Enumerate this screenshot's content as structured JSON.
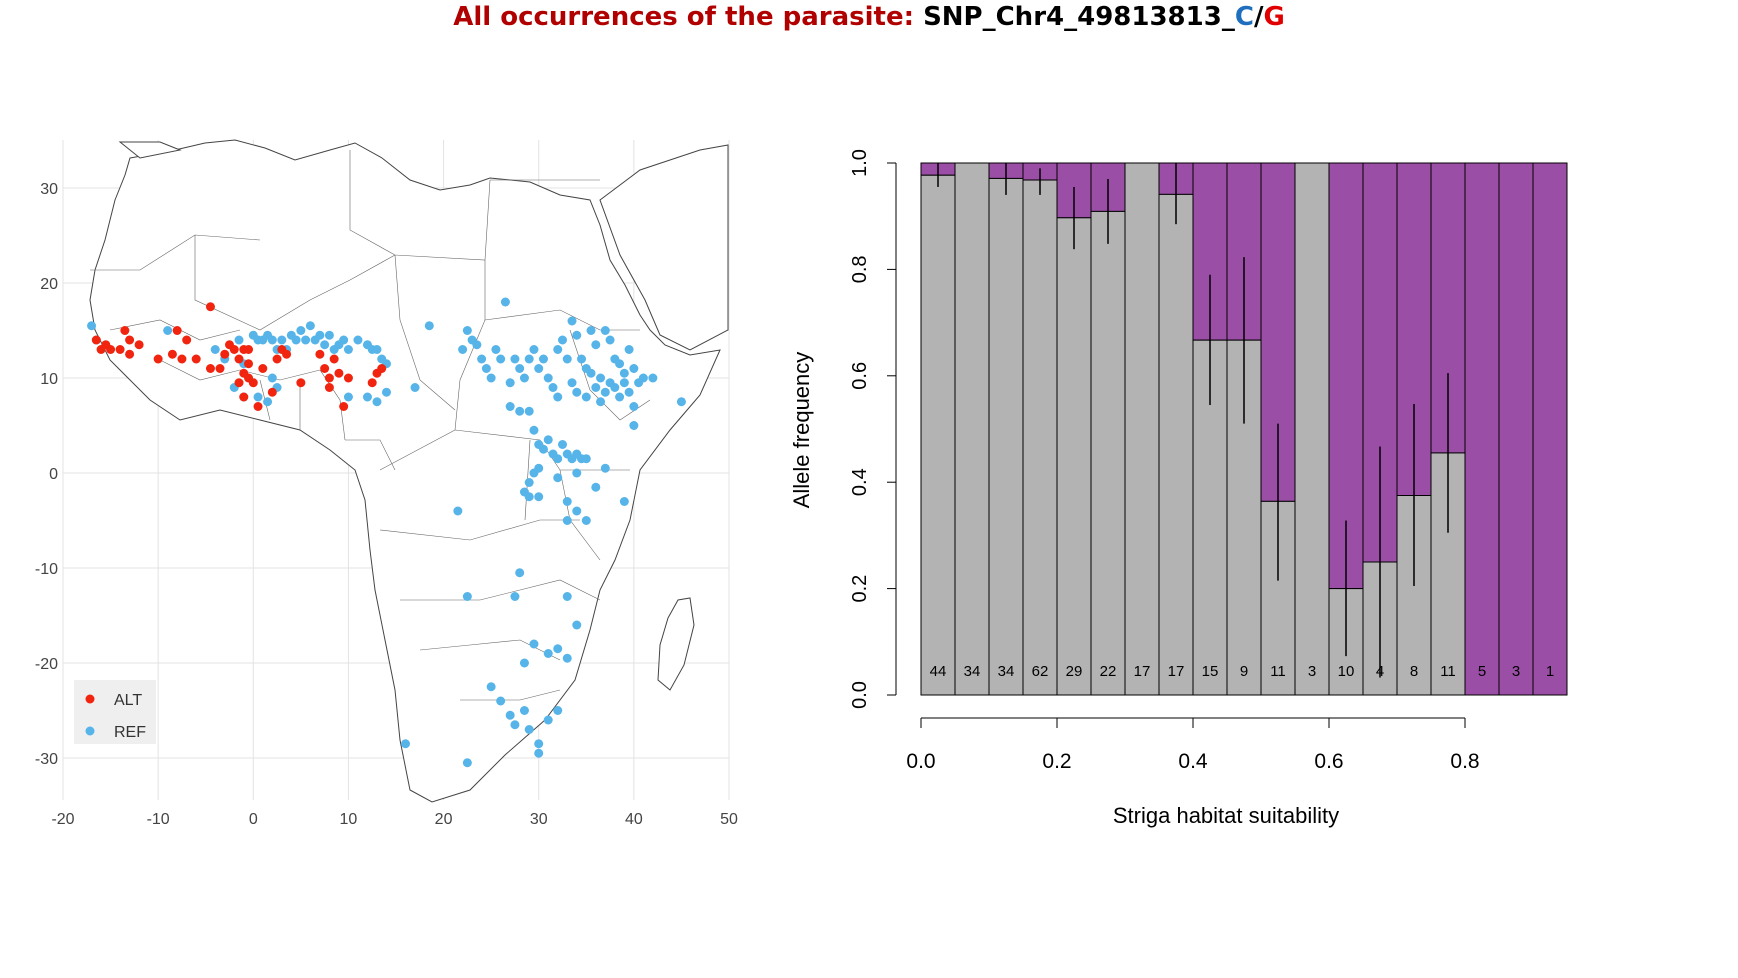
{
  "title": {
    "prefix": "All occurrences of the parasite:",
    "snp": "SNP_Chr4_49813813_",
    "ref_allele": "C",
    "separator": "/",
    "alt_allele": "G",
    "prefix_color": "#b00000",
    "ref_color": "#1f6fbf",
    "alt_color": "#e00000"
  },
  "chart_data": [
    {
      "type": "scatter",
      "subtype": "map",
      "xlim": [
        -20,
        50
      ],
      "ylim": [
        -35,
        35
      ],
      "x_ticks": [
        -20,
        -10,
        0,
        10,
        20,
        30,
        40,
        50
      ],
      "y_ticks": [
        30,
        20,
        10,
        0,
        -10,
        -20,
        -30
      ],
      "x_tick_labels": [
        "-20",
        "-10",
        "0",
        "10",
        "20",
        "30",
        "40",
        "50"
      ],
      "y_tick_labels": [
        "30",
        "20",
        "10",
        "0",
        "-10",
        "-20",
        "-30"
      ],
      "grid": true,
      "legend": "bottom-left",
      "series": [
        {
          "name": "ALT",
          "color": "#f0240f",
          "points": [
            [
              -16.5,
              14
            ],
            [
              -16,
              13
            ],
            [
              -15.5,
              13.5
            ],
            [
              -15,
              13
            ],
            [
              -14,
              13
            ],
            [
              -13.5,
              15
            ],
            [
              -13,
              14
            ],
            [
              -13,
              12.5
            ],
            [
              -12,
              13.5
            ],
            [
              -10,
              12
            ],
            [
              -8.5,
              12.5
            ],
            [
              -8,
              15
            ],
            [
              -7.5,
              12
            ],
            [
              -7,
              14
            ],
            [
              -6,
              12
            ],
            [
              -4.5,
              17.5
            ],
            [
              -4.5,
              11
            ],
            [
              -3.5,
              11
            ],
            [
              -3,
              12.5
            ],
            [
              -2.5,
              13.5
            ],
            [
              -2,
              13
            ],
            [
              -1.5,
              12
            ],
            [
              -1,
              13
            ],
            [
              -0.5,
              11.5
            ],
            [
              -0.5,
              13
            ],
            [
              -1,
              10.5
            ],
            [
              -1.5,
              9.5
            ],
            [
              -1,
              8
            ],
            [
              -0.5,
              10
            ],
            [
              0,
              9.5
            ],
            [
              0.5,
              7
            ],
            [
              1,
              11
            ],
            [
              2,
              8.5
            ],
            [
              2.5,
              12
            ],
            [
              3,
              13
            ],
            [
              3.5,
              12.5
            ],
            [
              5,
              9.5
            ],
            [
              7,
              12.5
            ],
            [
              7.5,
              11
            ],
            [
              8,
              10
            ],
            [
              8.5,
              12
            ],
            [
              8,
              9
            ],
            [
              9,
              10.5
            ],
            [
              9.5,
              7
            ],
            [
              10,
              10
            ],
            [
              12.5,
              9.5
            ],
            [
              13,
              10.5
            ],
            [
              13.5,
              11
            ]
          ]
        },
        {
          "name": "REF",
          "color": "#56b4e9",
          "points": [
            [
              -17,
              15.5
            ],
            [
              -16.5,
              14
            ],
            [
              -9,
              15
            ],
            [
              -4,
              13
            ],
            [
              -3,
              12
            ],
            [
              -1.5,
              14
            ],
            [
              -1,
              11.5
            ],
            [
              0,
              14.5
            ],
            [
              0.5,
              14
            ],
            [
              1,
              14
            ],
            [
              1.5,
              14.5
            ],
            [
              2,
              14
            ],
            [
              2.5,
              13
            ],
            [
              3,
              14
            ],
            [
              3.5,
              13
            ],
            [
              4,
              14.5
            ],
            [
              4.5,
              14
            ],
            [
              5,
              15
            ],
            [
              5.5,
              14
            ],
            [
              6,
              15.5
            ],
            [
              6.5,
              14
            ],
            [
              7,
              14.5
            ],
            [
              7.5,
              13.5
            ],
            [
              8,
              14.5
            ],
            [
              8.5,
              13
            ],
            [
              9,
              13.5
            ],
            [
              9.5,
              14
            ],
            [
              10,
              13
            ],
            [
              11,
              14
            ],
            [
              12,
              13.5
            ],
            [
              12.5,
              13
            ],
            [
              13,
              13
            ],
            [
              13.5,
              12
            ],
            [
              14,
              11.5
            ],
            [
              -2,
              9
            ],
            [
              -1,
              8
            ],
            [
              0.5,
              8
            ],
            [
              1.5,
              7.5
            ],
            [
              2,
              10
            ],
            [
              2.5,
              9
            ],
            [
              10,
              8
            ],
            [
              12,
              8
            ],
            [
              13,
              7.5
            ],
            [
              14,
              8.5
            ],
            [
              17,
              9
            ],
            [
              18.5,
              15.5
            ],
            [
              22,
              13
            ],
            [
              22.5,
              15
            ],
            [
              23,
              14
            ],
            [
              23.5,
              13.5
            ],
            [
              24,
              12
            ],
            [
              24.5,
              11
            ],
            [
              25,
              10
            ],
            [
              25.5,
              13
            ],
            [
              26,
              12
            ],
            [
              26.5,
              18
            ],
            [
              27,
              9.5
            ],
            [
              27.5,
              12
            ],
            [
              28,
              11
            ],
            [
              28.5,
              10
            ],
            [
              29,
              12
            ],
            [
              29.5,
              13
            ],
            [
              30,
              11
            ],
            [
              30.5,
              12
            ],
            [
              31,
              10
            ],
            [
              31.5,
              9
            ],
            [
              32,
              13
            ],
            [
              32,
              8
            ],
            [
              32.5,
              14
            ],
            [
              33,
              12
            ],
            [
              33.5,
              16
            ],
            [
              34,
              14.5
            ],
            [
              34.5,
              12
            ],
            [
              35,
              11
            ],
            [
              35.5,
              15
            ],
            [
              36,
              13.5
            ],
            [
              36.5,
              10
            ],
            [
              37,
              15
            ],
            [
              37.5,
              14
            ],
            [
              38,
              12
            ],
            [
              38.5,
              11.5
            ],
            [
              39,
              10.5
            ],
            [
              39.5,
              13
            ],
            [
              40,
              11
            ],
            [
              40.5,
              9.5
            ],
            [
              41,
              10
            ],
            [
              38,
              9
            ],
            [
              37,
              8.5
            ],
            [
              36,
              9
            ],
            [
              35,
              8
            ],
            [
              34,
              8.5
            ],
            [
              33.5,
              9.5
            ],
            [
              35.5,
              10.5
            ],
            [
              36.5,
              7.5
            ],
            [
              37.5,
              9.5
            ],
            [
              38.5,
              8
            ],
            [
              39,
              9.5
            ],
            [
              39.5,
              8.5
            ],
            [
              40,
              7
            ],
            [
              40,
              5
            ],
            [
              42,
              10
            ],
            [
              45,
              7.5
            ],
            [
              27,
              7
            ],
            [
              28,
              6.5
            ],
            [
              29,
              6.5
            ],
            [
              29.5,
              4.5
            ],
            [
              30,
              3
            ],
            [
              30.5,
              2.5
            ],
            [
              31,
              3.5
            ],
            [
              31.5,
              2
            ],
            [
              32,
              1.5
            ],
            [
              32.5,
              3
            ],
            [
              33,
              2
            ],
            [
              33.5,
              1.5
            ],
            [
              34,
              2
            ],
            [
              34.5,
              1.5
            ],
            [
              35,
              1.5
            ],
            [
              34,
              0
            ],
            [
              30,
              0.5
            ],
            [
              29.5,
              0
            ],
            [
              29,
              -1
            ],
            [
              28.5,
              -2
            ],
            [
              29,
              -2.5
            ],
            [
              30,
              -2.5
            ],
            [
              32,
              -0.5
            ],
            [
              33,
              -3
            ],
            [
              34,
              -4
            ],
            [
              36,
              -1.5
            ],
            [
              37,
              0.5
            ],
            [
              39,
              -3
            ],
            [
              33,
              -5
            ],
            [
              35,
              -5
            ],
            [
              21.5,
              -4
            ],
            [
              28,
              -10.5
            ],
            [
              27.5,
              -13
            ],
            [
              22.5,
              -13
            ],
            [
              33,
              -13
            ],
            [
              34,
              -16
            ],
            [
              28.5,
              -20
            ],
            [
              29.5,
              -18
            ],
            [
              31,
              -19
            ],
            [
              32,
              -18.5
            ],
            [
              33,
              -19.5
            ],
            [
              25,
              -22.5
            ],
            [
              26,
              -24
            ],
            [
              27,
              -25.5
            ],
            [
              27.5,
              -26.5
            ],
            [
              28.5,
              -25
            ],
            [
              29,
              -27
            ],
            [
              30,
              -28.5
            ],
            [
              30,
              -29.5
            ],
            [
              31,
              -26
            ],
            [
              32,
              -25
            ],
            [
              16,
              -28.5
            ],
            [
              22.5,
              -30.5
            ]
          ]
        }
      ]
    },
    {
      "type": "bar",
      "subtype": "stacked",
      "xlabel": "Striga habitat suitability",
      "ylabel": "Allele frequency",
      "xlim": [
        0,
        0.93
      ],
      "ylim": [
        0,
        1
      ],
      "x_ticks": [
        0.0,
        0.2,
        0.4,
        0.6,
        0.8
      ],
      "x_tick_labels": [
        "0.0",
        "0.2",
        "0.4",
        "0.6",
        "0.8"
      ],
      "y_ticks": [
        0.0,
        0.2,
        0.4,
        0.6,
        0.8,
        1.0
      ],
      "y_tick_labels": [
        "0.0",
        "0.2",
        "0.4",
        "0.6",
        "0.8",
        "1.0"
      ],
      "bar_width": 0.05,
      "bar_starts": [
        0.0,
        0.05,
        0.1,
        0.15,
        0.2,
        0.25,
        0.3,
        0.35,
        0.4,
        0.45,
        0.5,
        0.55,
        0.6,
        0.65,
        0.7,
        0.75,
        0.8,
        0.85,
        0.9
      ],
      "ref_freq": [
        0.977,
        1.0,
        0.971,
        0.968,
        0.897,
        0.909,
        1.0,
        0.941,
        0.667,
        0.667,
        0.364,
        1.0,
        0.2,
        0.25,
        0.375,
        0.455,
        0.0,
        0.0,
        0.0
      ],
      "err_low": [
        0.955,
        1.0,
        0.94,
        0.94,
        0.838,
        0.848,
        1.0,
        0.885,
        0.545,
        0.51,
        0.215,
        1.0,
        0.073,
        0.033,
        0.205,
        0.305,
        0.0,
        0.0,
        0.0
      ],
      "err_high": [
        1.0,
        1.0,
        1.0,
        0.99,
        0.955,
        0.97,
        1.0,
        1.0,
        0.79,
        0.823,
        0.51,
        1.0,
        0.328,
        0.467,
        0.547,
        0.605,
        0.0,
        0.0,
        0.0
      ],
      "counts": [
        "44",
        "34",
        "34",
        "62",
        "29",
        "22",
        "17",
        "17",
        "15",
        "9",
        "11",
        "3",
        "10",
        "4",
        "8",
        "11",
        "5",
        "3",
        "1"
      ],
      "series_colors": {
        "ref": "#b3b3b3",
        "alt": "#9b4ea6"
      }
    }
  ]
}
